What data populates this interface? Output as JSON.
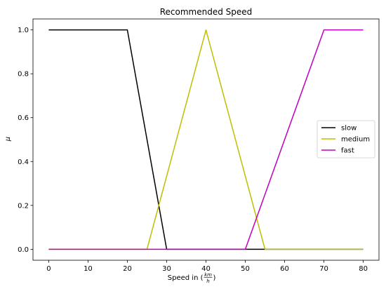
{
  "chart_data": {
    "type": "line",
    "title": "Recommended Speed",
    "xlabel": "Speed in (km/h)",
    "xlabel_parts": {
      "prefix": "Speed in (",
      "numerator": "km",
      "denominator": "h",
      "suffix": ")"
    },
    "ylabel": "μ",
    "xlim": [
      -4,
      84
    ],
    "ylim": [
      -0.05,
      1.05
    ],
    "xticks": [
      0,
      10,
      20,
      30,
      40,
      50,
      60,
      70,
      80
    ],
    "yticks": [
      0.0,
      0.2,
      0.4,
      0.6,
      0.8,
      1.0
    ],
    "grid": false,
    "legend_position": "center-right",
    "series": [
      {
        "name": "slow",
        "color": "#000000",
        "x": [
          0,
          20,
          30,
          80
        ],
        "y": [
          1,
          1,
          0,
          0
        ]
      },
      {
        "name": "medium",
        "color": "#bfbf00",
        "x": [
          0,
          25,
          40,
          55,
          80
        ],
        "y": [
          0,
          0,
          1,
          0,
          0
        ]
      },
      {
        "name": "fast",
        "color": "#bf00bf",
        "x": [
          0,
          50,
          70,
          80
        ],
        "y": [
          0,
          0,
          1,
          1
        ]
      }
    ]
  }
}
